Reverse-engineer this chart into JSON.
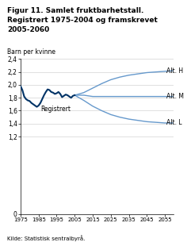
{
  "title": "Figur 11. Samlet fruktbarhetstall.\nRegistrert 1975-2004 og framskrevet\n2005-2060",
  "ylabel": "Barn per kvinne",
  "source": "Kilde: Statistisk sentralbyrå.",
  "xlim": [
    1975,
    2060
  ],
  "ylim": [
    0,
    2.4
  ],
  "yticks": [
    0,
    1.2,
    1.4,
    1.6,
    1.8,
    2.0,
    2.2,
    2.4
  ],
  "xticks": [
    1975,
    1985,
    1995,
    2005,
    2015,
    2025,
    2035,
    2045,
    2055
  ],
  "registered_color": "#003366",
  "forecast_color": "#6699cc",
  "registered_years": [
    1975,
    1976,
    1977,
    1978,
    1979,
    1980,
    1981,
    1982,
    1983,
    1984,
    1985,
    1986,
    1987,
    1988,
    1989,
    1990,
    1991,
    1992,
    1993,
    1994,
    1995,
    1996,
    1997,
    1998,
    1999,
    2000,
    2001,
    2002,
    2003,
    2004,
    2005
  ],
  "registered_values": [
    1.98,
    1.92,
    1.82,
    1.78,
    1.76,
    1.75,
    1.72,
    1.7,
    1.68,
    1.66,
    1.68,
    1.72,
    1.78,
    1.84,
    1.89,
    1.93,
    1.92,
    1.89,
    1.88,
    1.86,
    1.87,
    1.89,
    1.86,
    1.81,
    1.83,
    1.85,
    1.84,
    1.82,
    1.8,
    1.83,
    1.84
  ],
  "alt_h_years": [
    2005,
    2010,
    2015,
    2020,
    2025,
    2030,
    2035,
    2040,
    2045,
    2050,
    2055,
    2060
  ],
  "alt_h_values": [
    1.84,
    1.88,
    1.95,
    2.02,
    2.08,
    2.12,
    2.15,
    2.17,
    2.19,
    2.2,
    2.21,
    2.22
  ],
  "alt_m_years": [
    2005,
    2010,
    2015,
    2020,
    2025,
    2030,
    2035,
    2040,
    2045,
    2050,
    2055,
    2060
  ],
  "alt_m_values": [
    1.84,
    1.84,
    1.82,
    1.82,
    1.82,
    1.82,
    1.82,
    1.82,
    1.82,
    1.82,
    1.82,
    1.82
  ],
  "alt_l_years": [
    2005,
    2010,
    2015,
    2020,
    2025,
    2030,
    2035,
    2040,
    2045,
    2050,
    2055,
    2060
  ],
  "alt_l_values": [
    1.84,
    1.76,
    1.67,
    1.6,
    1.54,
    1.5,
    1.47,
    1.45,
    1.43,
    1.42,
    1.41,
    1.41
  ],
  "label_registrert": "Registrert",
  "label_alt_h": "Alt. H",
  "label_alt_m": "Alt. M",
  "label_alt_l": "Alt. L"
}
